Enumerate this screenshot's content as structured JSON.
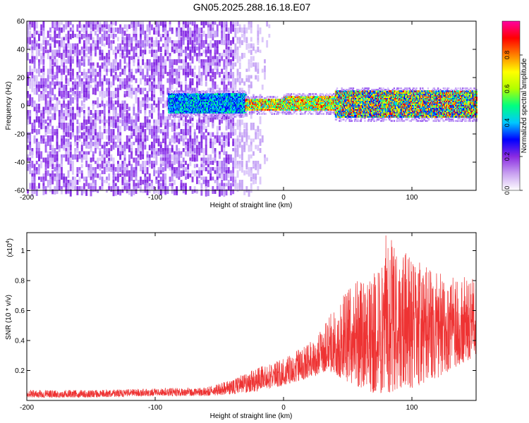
{
  "title": "GN05.2025.288.16.18.E07",
  "chart_data": [
    {
      "type": "heatmap",
      "xlabel": "Height of straight line (km)",
      "ylabel": "Frequency (Hz)",
      "xlim": [
        -200,
        150
      ],
      "ylim": [
        -60,
        60
      ],
      "x_ticks": [
        -200,
        -100,
        0,
        100
      ],
      "y_ticks": [
        -60,
        -40,
        -20,
        0,
        20,
        40,
        60
      ],
      "colorbar": {
        "label": "Normalized spectral amplitude",
        "range": [
          0,
          1
        ],
        "ticks": [
          "0.0",
          "0.2",
          "0.4",
          "0.6",
          "0.8"
        ],
        "colors": [
          "#ffffff",
          "#c8a0f0",
          "#8a2be2",
          "#0000ff",
          "#00c8ff",
          "#00ff80",
          "#b0ff00",
          "#ffff00",
          "#ff8000",
          "#ff0000",
          "#ff00a0"
        ]
      },
      "bands": [
        {
          "x_range": [
            -200,
            -40
          ],
          "y_range": [
            -60,
            60
          ],
          "level": "scattered-violet"
        },
        {
          "x_range": [
            -40,
            -10
          ],
          "y_range": [
            -60,
            60
          ],
          "level": "faint-violet"
        },
        {
          "x_range": [
            -90,
            -30
          ],
          "y_range": [
            -5,
            8
          ],
          "level": "blue-green"
        },
        {
          "x_range": [
            -30,
            0
          ],
          "y_range": [
            -3,
            4
          ],
          "level": "green-red"
        },
        {
          "x_range": [
            0,
            40
          ],
          "y_range": [
            -3,
            6
          ],
          "level": "cyan-red"
        },
        {
          "x_range": [
            40,
            150
          ],
          "y_range": [
            -8,
            10
          ],
          "level": "mixed-cyan-red"
        }
      ]
    },
    {
      "type": "line",
      "xlabel": "Height of straight line (km)",
      "ylabel": "SNR (10 * v/v)",
      "y_multiplier": "(x10",
      "y_multiplier_exp": "4",
      "xlim": [
        -200,
        150
      ],
      "ylim": [
        0,
        1.12
      ],
      "x_ticks": [
        -200,
        -100,
        0,
        100
      ],
      "y_ticks": [
        "0.2",
        "0.4",
        "0.6",
        "0.8",
        "1"
      ],
      "line_color": "#ee3333",
      "envelope": [
        {
          "x": -200,
          "low": 0.02,
          "high": 0.07
        },
        {
          "x": -150,
          "low": 0.02,
          "high": 0.07
        },
        {
          "x": -100,
          "low": 0.03,
          "high": 0.08
        },
        {
          "x": -60,
          "low": 0.03,
          "high": 0.09
        },
        {
          "x": -40,
          "low": 0.04,
          "high": 0.14
        },
        {
          "x": -20,
          "low": 0.06,
          "high": 0.22
        },
        {
          "x": 0,
          "low": 0.1,
          "high": 0.28
        },
        {
          "x": 20,
          "low": 0.15,
          "high": 0.38
        },
        {
          "x": 35,
          "low": 0.2,
          "high": 0.55
        },
        {
          "x": 50,
          "low": 0.12,
          "high": 0.8
        },
        {
          "x": 70,
          "low": 0.05,
          "high": 0.85
        },
        {
          "x": 80,
          "low": 0.05,
          "high": 1.12
        },
        {
          "x": 100,
          "low": 0.08,
          "high": 0.95
        },
        {
          "x": 120,
          "low": 0.15,
          "high": 0.85
        },
        {
          "x": 150,
          "low": 0.3,
          "high": 0.82
        }
      ]
    }
  ]
}
